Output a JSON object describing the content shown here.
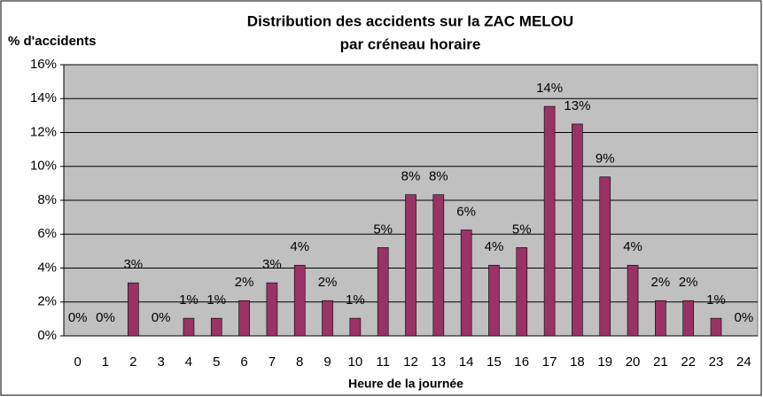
{
  "chart_data": {
    "type": "bar",
    "title": [
      "Distribution des accidents sur la ZAC MELOU",
      "par créneau horaire"
    ],
    "y_label": "% d'accidents",
    "x_label": "Heure de la journée",
    "categories": [
      "0",
      "1",
      "2",
      "3",
      "4",
      "5",
      "6",
      "7",
      "8",
      "9",
      "10",
      "11",
      "12",
      "13",
      "14",
      "15",
      "16",
      "17",
      "18",
      "19",
      "20",
      "21",
      "22",
      "23",
      "24"
    ],
    "values": [
      0,
      0,
      3.13,
      0,
      1.04,
      1.04,
      2.08,
      3.13,
      4.17,
      2.08,
      1.04,
      5.21,
      8.33,
      8.33,
      6.25,
      4.17,
      5.21,
      13.54,
      12.5,
      9.38,
      4.17,
      2.08,
      2.08,
      1.04,
      0
    ],
    "value_labels": [
      "0%",
      "0%",
      "3%",
      "0%",
      "1%",
      "1%",
      "2%",
      "3%",
      "4%",
      "2%",
      "1%",
      "5%",
      "8%",
      "8%",
      "6%",
      "4%",
      "5%",
      "14%",
      "13%",
      "9%",
      "4%",
      "2%",
      "2%",
      "1%",
      "0%"
    ],
    "color": "#993366",
    "ylim": [
      0,
      16
    ],
    "yticks": [
      {
        "value": 0,
        "label": "0%"
      },
      {
        "value": 2,
        "label": "2%"
      },
      {
        "value": 4,
        "label": "4%"
      },
      {
        "value": 6,
        "label": "6%"
      },
      {
        "value": 8,
        "label": "8%"
      },
      {
        "value": 10,
        "label": "10%"
      },
      {
        "value": 12,
        "label": "12%"
      },
      {
        "value": 14,
        "label": "14%"
      },
      {
        "value": 16,
        "label": "16%"
      }
    ],
    "grid": true
  }
}
